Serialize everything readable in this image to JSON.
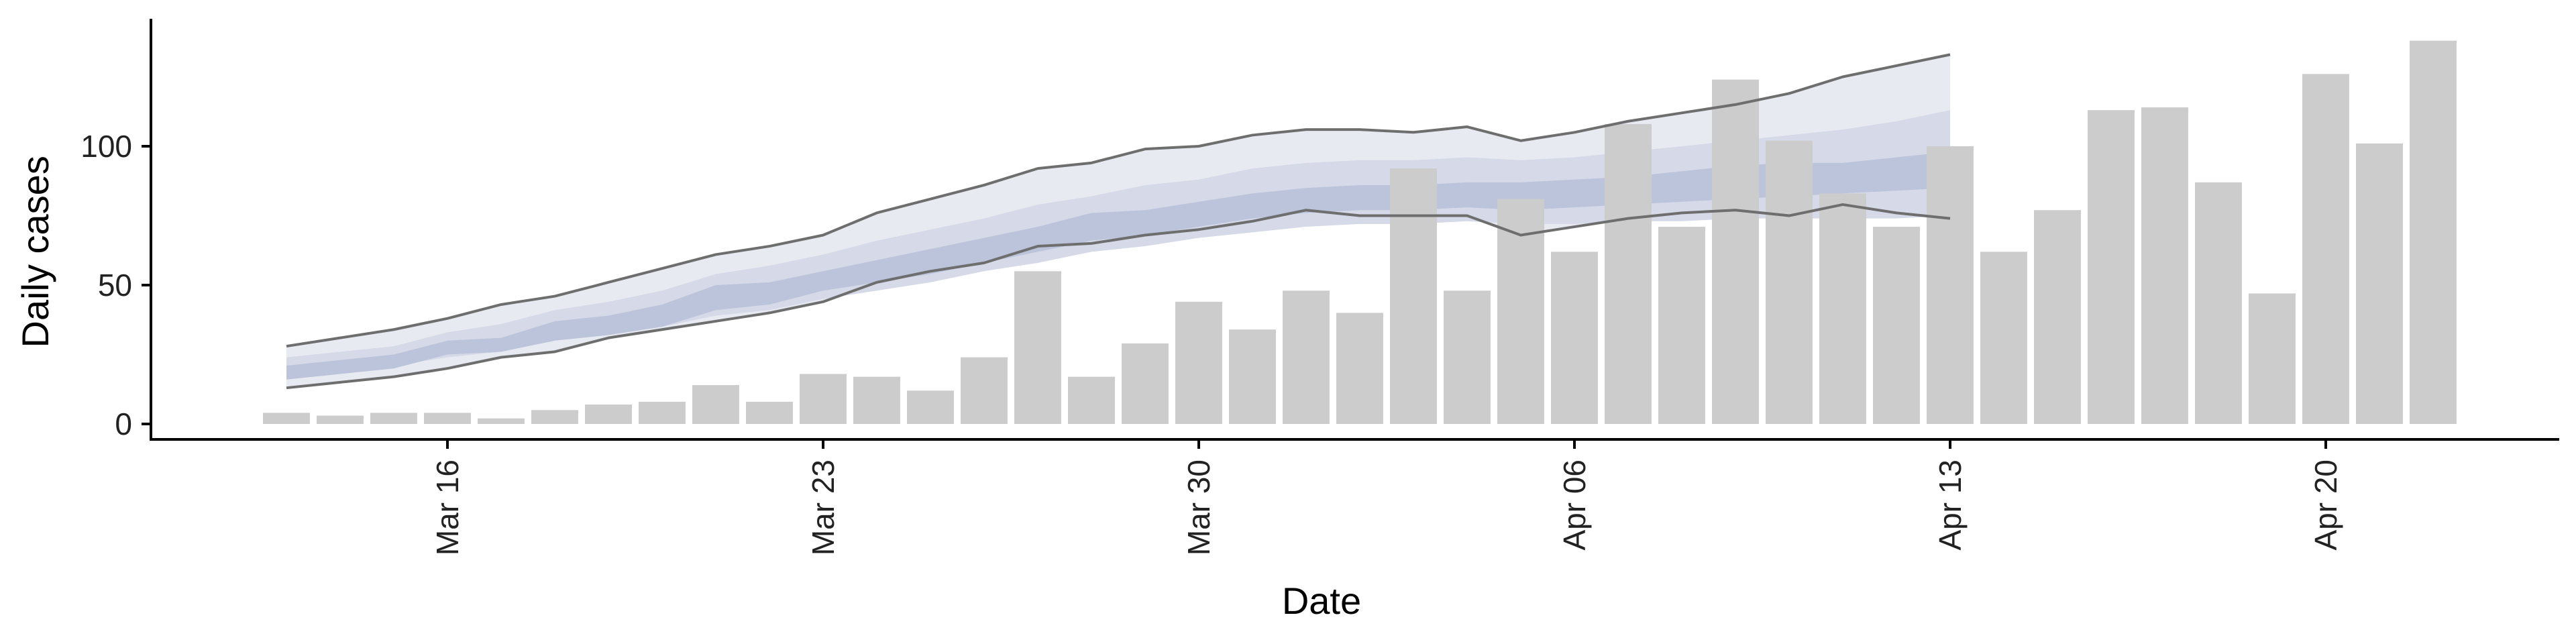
{
  "chart_data": {
    "type": "bar",
    "xlabel": "Date",
    "ylabel": "Daily cases",
    "x_ticks": [
      "Mar 16",
      "Mar 23",
      "Mar 30",
      "Apr 06",
      "Apr 13",
      "Apr 20"
    ],
    "y_ticks": [
      0,
      50,
      100
    ],
    "ylim": [
      -7,
      145
    ],
    "bars": {
      "dates": [
        "2020-03-13",
        "2020-03-14",
        "2020-03-15",
        "2020-03-16",
        "2020-03-17",
        "2020-03-18",
        "2020-03-19",
        "2020-03-20",
        "2020-03-21",
        "2020-03-22",
        "2020-03-23",
        "2020-03-24",
        "2020-03-25",
        "2020-03-26",
        "2020-03-27",
        "2020-03-28",
        "2020-03-29",
        "2020-03-30",
        "2020-03-31",
        "2020-04-01",
        "2020-04-02",
        "2020-04-03",
        "2020-04-04",
        "2020-04-05",
        "2020-04-06",
        "2020-04-07",
        "2020-04-08",
        "2020-04-09",
        "2020-04-10",
        "2020-04-11",
        "2020-04-12",
        "2020-04-13",
        "2020-04-14",
        "2020-04-15",
        "2020-04-16",
        "2020-04-17",
        "2020-04-18",
        "2020-04-19",
        "2020-04-20",
        "2020-04-21",
        "2020-04-22"
      ],
      "values": [
        4,
        3,
        4,
        4,
        2,
        5,
        7,
        8,
        14,
        8,
        18,
        17,
        12,
        24,
        55,
        17,
        29,
        44,
        34,
        48,
        40,
        92,
        48,
        81,
        62,
        108,
        71,
        124,
        102,
        83,
        71,
        100,
        62,
        77,
        113,
        114,
        87,
        47,
        126,
        101,
        138
      ]
    },
    "forecast": {
      "dates": [
        "2020-03-13",
        "2020-03-14",
        "2020-03-15",
        "2020-03-16",
        "2020-03-17",
        "2020-03-18",
        "2020-03-19",
        "2020-03-20",
        "2020-03-21",
        "2020-03-22",
        "2020-03-23",
        "2020-03-24",
        "2020-03-25",
        "2020-03-26",
        "2020-03-27",
        "2020-03-28",
        "2020-03-29",
        "2020-03-30",
        "2020-03-31",
        "2020-04-01",
        "2020-04-02",
        "2020-04-03",
        "2020-04-04",
        "2020-04-05",
        "2020-04-06",
        "2020-04-07",
        "2020-04-08",
        "2020-04-09",
        "2020-04-10",
        "2020-04-11",
        "2020-04-12",
        "2020-04-13"
      ],
      "upper_90": [
        28,
        31,
        34,
        38,
        43,
        46,
        51,
        56,
        61,
        64,
        68,
        76,
        81,
        86,
        92,
        94,
        99,
        100,
        104,
        106,
        106,
        105,
        107,
        102,
        105,
        109,
        112,
        115,
        119,
        125,
        129,
        133
      ],
      "upper_50": [
        24,
        26,
        28,
        33,
        36,
        41,
        44,
        48,
        54,
        57,
        61,
        66,
        70,
        74,
        79,
        82,
        86,
        88,
        92,
        94,
        95,
        95,
        96,
        95,
        96,
        98,
        100,
        102,
        104,
        106,
        109,
        113
      ],
      "upper_20": [
        21,
        23,
        25,
        30,
        31,
        37,
        39,
        43,
        50,
        51,
        55,
        59,
        63,
        67,
        71,
        76,
        77,
        80,
        83,
        85,
        86,
        86,
        87,
        87,
        88,
        89,
        91,
        93,
        94,
        94,
        96,
        98
      ],
      "lower_20": [
        16,
        18,
        20,
        25,
        26,
        30,
        32,
        35,
        41,
        43,
        48,
        51,
        54,
        58,
        62,
        66,
        68,
        71,
        74,
        76,
        77,
        77,
        78,
        77,
        78,
        79,
        80,
        81,
        82,
        83,
        84,
        85
      ],
      "lower_50": [
        17,
        19,
        21,
        24,
        26,
        30,
        32,
        35,
        39,
        41,
        45,
        48,
        51,
        55,
        58,
        62,
        64,
        67,
        69,
        71,
        72,
        72,
        73,
        72,
        72,
        73,
        73,
        74,
        74,
        74,
        74,
        75
      ],
      "lower_90": [
        13,
        15,
        17,
        20,
        24,
        26,
        31,
        34,
        37,
        40,
        44,
        51,
        55,
        58,
        64,
        65,
        68,
        70,
        73,
        77,
        75,
        75,
        75,
        68,
        71,
        74,
        76,
        77,
        75,
        79,
        76,
        74
      ]
    },
    "colors": {
      "bar": "#cccccc",
      "band_90": "#e8eaf2",
      "band_50": "#d6dae8",
      "band_20": "#bcc4db",
      "bound_line": "#6e6e6e",
      "axis": "#000000"
    }
  }
}
